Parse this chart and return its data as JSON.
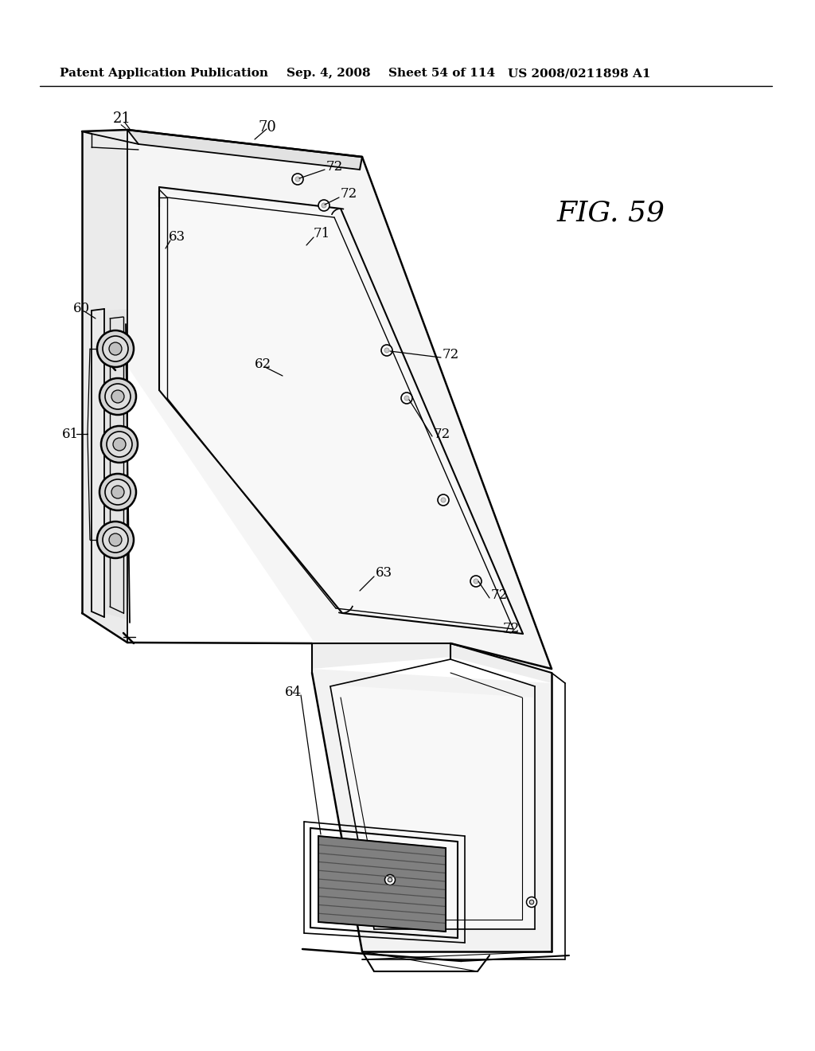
{
  "bg_color": "#ffffff",
  "header_text": "Patent Application Publication",
  "header_date": "Sep. 4, 2008",
  "header_sheet": "Sheet 54 of 114",
  "header_patent": "US 2008/0211898 A1",
  "fig_label": "FIG. 59",
  "lw_outer": 1.8,
  "lw_inner": 1.2,
  "lw_thin": 0.8,
  "gray_light": "#f0f0f0",
  "gray_mid": "#d8d8d8",
  "gray_dark": "#888888"
}
